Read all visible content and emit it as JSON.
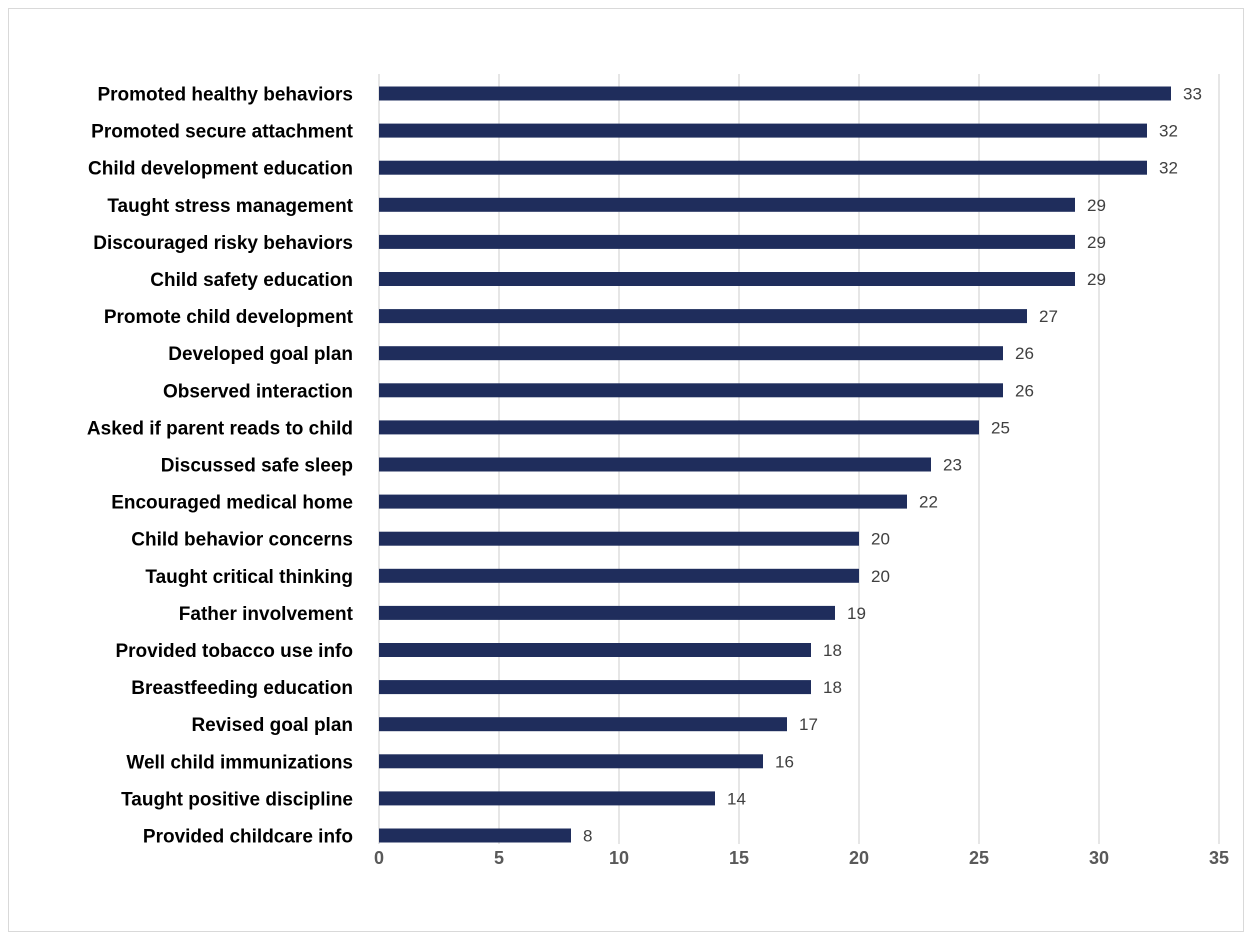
{
  "chart_data": {
    "type": "bar",
    "orientation": "horizontal",
    "title": "",
    "xlabel": "",
    "ylabel": "",
    "categories": [
      "Promoted healthy behaviors",
      "Promoted secure attachment",
      "Child development education",
      "Taught stress management",
      "Discouraged risky behaviors",
      "Child safety education",
      "Promote child development",
      "Developed goal plan",
      "Observed interaction",
      "Asked if parent reads to child",
      "Discussed safe sleep",
      "Encouraged medical home",
      "Child behavior concerns",
      "Taught critical thinking",
      "Father involvement",
      "Provided tobacco use info",
      "Breastfeeding education",
      "Revised goal plan",
      "Well child immunizations",
      "Taught positive discipline",
      "Provided childcare info"
    ],
    "values": [
      33,
      32,
      32,
      29,
      29,
      29,
      27,
      26,
      26,
      25,
      23,
      22,
      20,
      20,
      19,
      18,
      18,
      17,
      16,
      14,
      8
    ],
    "xlim": [
      0,
      35
    ],
    "xticks": [
      0,
      5,
      10,
      15,
      20,
      25,
      30,
      35
    ],
    "grid": "vertical",
    "legend": "none",
    "data_labels": true,
    "bar_color": "#1f2d5c",
    "grid_color": "#d9d9d9"
  }
}
